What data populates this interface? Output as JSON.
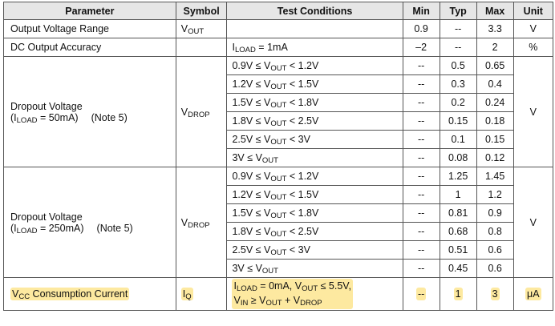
{
  "headers": [
    "Parameter",
    "Symbol",
    "Test Conditions",
    "Min",
    "Typ",
    "Max",
    "Unit"
  ],
  "rows_simple": [
    {
      "param": [
        {
          "t": "Output Voltage Range"
        }
      ],
      "symbol": [
        {
          "t": "V"
        },
        {
          "s": "OUT"
        }
      ],
      "cond": [],
      "min": "0.9",
      "typ": "--",
      "max": "3.3",
      "unit": "V"
    },
    {
      "param": [
        {
          "t": "DC Output Accuracy"
        }
      ],
      "symbol": [],
      "cond": [
        {
          "t": "I"
        },
        {
          "s": "LOAD"
        },
        {
          "t": " = 1mA"
        }
      ],
      "min": "–2",
      "typ": "--",
      "max": "2",
      "unit": "%"
    }
  ],
  "groups": [
    {
      "param_line1": "Dropout Voltage",
      "param_line2": [
        {
          "t": "(I"
        },
        {
          "s": "LOAD"
        },
        {
          "t": " = 50mA)"
        }
      ],
      "note": "(Note 5)",
      "symbol": [
        {
          "t": "V"
        },
        {
          "s": "DROP"
        }
      ],
      "unit": "V",
      "rows": [
        {
          "cond": [
            {
              "t": "0.9V ≤ V"
            },
            {
              "s": "OUT"
            },
            {
              "t": " < 1.2V"
            }
          ],
          "min": "--",
          "typ": "0.5",
          "max": "0.65"
        },
        {
          "cond": [
            {
              "t": "1.2V ≤ V"
            },
            {
              "s": "OUT"
            },
            {
              "t": " < 1.5V"
            }
          ],
          "min": "--",
          "typ": "0.3",
          "max": "0.4"
        },
        {
          "cond": [
            {
              "t": "1.5V ≤ V"
            },
            {
              "s": "OUT"
            },
            {
              "t": " < 1.8V"
            }
          ],
          "min": "--",
          "typ": "0.2",
          "max": "0.24"
        },
        {
          "cond": [
            {
              "t": "1.8V ≤ V"
            },
            {
              "s": "OUT"
            },
            {
              "t": " < 2.5V"
            }
          ],
          "min": "--",
          "typ": "0.15",
          "max": "0.18"
        },
        {
          "cond": [
            {
              "t": "2.5V ≤ V"
            },
            {
              "s": "OUT"
            },
            {
              "t": " < 3V"
            }
          ],
          "min": "--",
          "typ": "0.1",
          "max": "0.15"
        },
        {
          "cond": [
            {
              "t": "3V ≤ V"
            },
            {
              "s": "OUT"
            }
          ],
          "min": "--",
          "typ": "0.08",
          "max": "0.12"
        }
      ]
    },
    {
      "param_line1": "Dropout Voltage",
      "param_line2": [
        {
          "t": "(I"
        },
        {
          "s": "LOAD"
        },
        {
          "t": " = 250mA)"
        }
      ],
      "note": "(Note 5)",
      "symbol": [
        {
          "t": "V"
        },
        {
          "s": "DROP"
        }
      ],
      "unit": "V",
      "rows": [
        {
          "cond": [
            {
              "t": "0.9V ≤ V"
            },
            {
              "s": "OUT"
            },
            {
              "t": " < 1.2V"
            }
          ],
          "min": "--",
          "typ": "1.25",
          "max": "1.45"
        },
        {
          "cond": [
            {
              "t": "1.2V ≤ V"
            },
            {
              "s": "OUT"
            },
            {
              "t": " < 1.5V"
            }
          ],
          "min": "--",
          "typ": "1",
          "max": "1.2"
        },
        {
          "cond": [
            {
              "t": "1.5V ≤ V"
            },
            {
              "s": "OUT"
            },
            {
              "t": " < 1.8V"
            }
          ],
          "min": "--",
          "typ": "0.81",
          "max": "0.9"
        },
        {
          "cond": [
            {
              "t": "1.8V ≤ V"
            },
            {
              "s": "OUT"
            },
            {
              "t": " < 2.5V"
            }
          ],
          "min": "--",
          "typ": "0.68",
          "max": "0.8"
        },
        {
          "cond": [
            {
              "t": "2.5V ≤ V"
            },
            {
              "s": "OUT"
            },
            {
              "t": " < 3V"
            }
          ],
          "min": "--",
          "typ": "0.51",
          "max": "0.6"
        },
        {
          "cond": [
            {
              "t": "3V ≤ V"
            },
            {
              "s": "OUT"
            }
          ],
          "min": "--",
          "typ": "0.45",
          "max": "0.6"
        }
      ]
    }
  ],
  "highlight_row": {
    "param": [
      {
        "t": "V"
      },
      {
        "s": "CC"
      },
      {
        "t": " Consumption Current"
      }
    ],
    "symbol": [
      {
        "t": "I"
      },
      {
        "s": "Q"
      }
    ],
    "cond_line1": [
      {
        "t": "I"
      },
      {
        "s": "LOAD"
      },
      {
        "t": " = 0mA, V"
      },
      {
        "s": "OUT"
      },
      {
        "t": " ≤ 5.5V,"
      }
    ],
    "cond_line2": [
      {
        "t": "V"
      },
      {
        "s": "IN"
      },
      {
        "t": " ≥ V"
      },
      {
        "s": "OUT"
      },
      {
        "t": " + V"
      },
      {
        "s": "DROP"
      }
    ],
    "min": "--",
    "typ": "1",
    "max": "3",
    "unit": "μA",
    "highlight_color": "#fde9a0"
  }
}
